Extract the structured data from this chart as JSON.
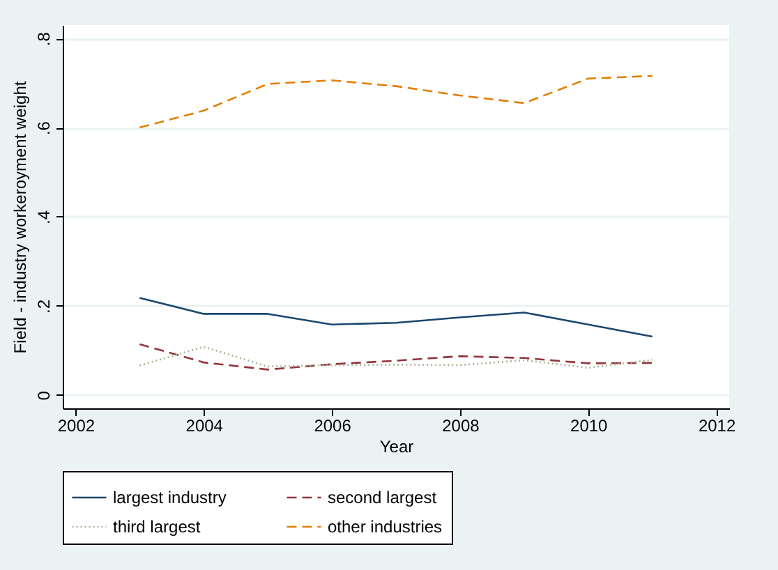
{
  "chart_data": {
    "type": "line",
    "xlabel": "Year",
    "ylabel": "Field - industry workeroyment weight",
    "x": [
      2003,
      2004,
      2005,
      2006,
      2007,
      2008,
      2009,
      2010,
      2011
    ],
    "xlim": [
      2001.8,
      2012.2
    ],
    "xticks": [
      2002,
      2004,
      2006,
      2008,
      2010,
      2012
    ],
    "ylim": [
      -0.03,
      0.83
    ],
    "yticks": [
      {
        "value": 0,
        "label": "0"
      },
      {
        "value": 0.2,
        "label": ".2"
      },
      {
        "value": 0.4,
        "label": ".4"
      },
      {
        "value": 0.6,
        "label": ".6"
      },
      {
        "value": 0.8,
        "label": ".8"
      }
    ],
    "grid": "y",
    "legend": "bottom",
    "marker": "none",
    "series": [
      {
        "name": "largest industry",
        "color": "#1a476f",
        "line_style": "solid",
        "values": [
          0.218,
          0.182,
          0.182,
          0.158,
          0.162,
          0.174,
          0.185,
          0.158,
          0.131
        ]
      },
      {
        "name": "second largest",
        "color": "#90353b",
        "line_style": "dashed",
        "values": [
          0.114,
          0.073,
          0.057,
          0.069,
          0.077,
          0.087,
          0.083,
          0.071,
          0.072
        ]
      },
      {
        "name": "third largest",
        "color": "#a9b394",
        "line_style": "dotted",
        "values": [
          0.066,
          0.108,
          0.064,
          0.067,
          0.068,
          0.067,
          0.078,
          0.061,
          0.079
        ]
      },
      {
        "name": "other industries",
        "color": "#e37e00",
        "line_style": "dashed",
        "values": [
          0.6,
          0.638,
          0.698,
          0.706,
          0.693,
          0.672,
          0.655,
          0.71,
          0.716
        ]
      }
    ]
  }
}
